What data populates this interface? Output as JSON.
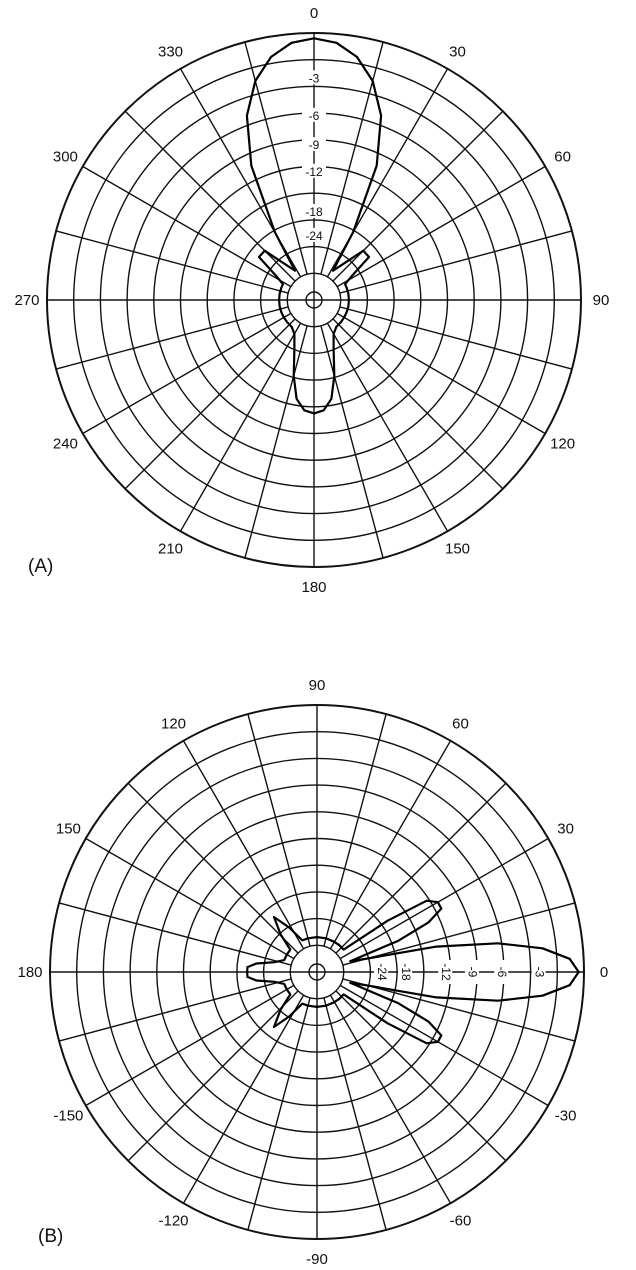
{
  "chart_data": [
    {
      "type": "polar",
      "panel_label": "(A)",
      "angle_labels": [
        "0",
        "30",
        "60",
        "90",
        "120",
        "150",
        "180",
        "210",
        "240",
        "270",
        "300",
        "330"
      ],
      "angle_values_deg": [
        0,
        30,
        60,
        90,
        120,
        150,
        180,
        210,
        240,
        270,
        300,
        330
      ],
      "radial_labels": [
        "-3",
        "-6",
        "-9",
        "-12",
        "-18",
        "-24"
      ],
      "radial_values_db": [
        -3,
        -6,
        -9,
        -12,
        -18,
        -24
      ],
      "radial_range_db": [
        -30,
        0
      ],
      "grid": true,
      "series": [
        {
          "points": [
            [
              0,
              0
            ],
            [
              5,
              -0.4
            ],
            [
              10,
              -1.7
            ],
            [
              15,
              -4
            ],
            [
              20,
              -7.5
            ],
            [
              25,
              -13
            ],
            [
              30,
              -21
            ],
            [
              33,
              -26
            ],
            [
              38,
              -25
            ],
            [
              45,
              -22
            ],
            [
              52,
              -22
            ],
            [
              58,
              -25
            ],
            [
              63,
              -26
            ],
            [
              70,
              -26
            ],
            [
              80,
              -26
            ],
            [
              90,
              -26
            ],
            [
              100,
              -26
            ],
            [
              110,
              -26
            ],
            [
              120,
              -26
            ],
            [
              130,
              -26
            ],
            [
              140,
              -26
            ],
            [
              150,
              -25.5
            ],
            [
              158,
              -24
            ],
            [
              165,
              -21
            ],
            [
              170,
              -18.5
            ],
            [
              175,
              -17.3
            ],
            [
              180,
              -17
            ],
            [
              185,
              -17.3
            ],
            [
              190,
              -18.5
            ],
            [
              195,
              -21
            ],
            [
              202,
              -24
            ],
            [
              210,
              -25.5
            ],
            [
              220,
              -26
            ],
            [
              230,
              -26
            ],
            [
              240,
              -26
            ],
            [
              250,
              -26
            ],
            [
              260,
              -26
            ],
            [
              270,
              -26
            ],
            [
              280,
              -26
            ],
            [
              290,
              -26
            ],
            [
              297,
              -26
            ],
            [
              302,
              -25
            ],
            [
              308,
              -22
            ],
            [
              315,
              -22
            ],
            [
              322,
              -25
            ],
            [
              327,
              -26
            ],
            [
              330,
              -21
            ],
            [
              335,
              -13
            ],
            [
              340,
              -7.5
            ],
            [
              345,
              -4
            ],
            [
              350,
              -1.7
            ],
            [
              355,
              -0.4
            ],
            [
              360,
              0
            ]
          ]
        }
      ]
    },
    {
      "type": "polar",
      "panel_label": "(B)",
      "angle_labels": [
        "0",
        "30",
        "60",
        "90",
        "120",
        "150",
        "180",
        "-150",
        "-120",
        "-90",
        "-60",
        "-30"
      ],
      "angle_values_deg": [
        0,
        30,
        60,
        90,
        120,
        150,
        180,
        -150,
        -120,
        -90,
        -60,
        -30
      ],
      "radial_labels": [
        "-3",
        "-6",
        "-9",
        "-12",
        "-18",
        "-24"
      ],
      "radial_values_db": [
        -3,
        -6,
        -9,
        -12,
        -18,
        -24
      ],
      "radial_range_db": [
        -30,
        0
      ],
      "grid": true,
      "series": [
        {
          "points": [
            [
              0,
              0
            ],
            [
              3,
              -1
            ],
            [
              6,
              -4
            ],
            [
              9,
              -9
            ],
            [
              12,
              -16
            ],
            [
              15,
              -24
            ],
            [
              18,
              -26
            ],
            [
              21,
              -20
            ],
            [
              24,
              -16
            ],
            [
              27,
              -14
            ],
            [
              30,
              -14
            ],
            [
              33,
              -15
            ],
            [
              36,
              -20
            ],
            [
              40,
              -26
            ],
            [
              50,
              -26
            ],
            [
              60,
              -26
            ],
            [
              75,
              -26
            ],
            [
              90,
              -26
            ],
            [
              105,
              -26
            ],
            [
              115,
              -26
            ],
            [
              122,
              -24
            ],
            [
              128,
              -22
            ],
            [
              134,
              -24
            ],
            [
              140,
              -26
            ],
            [
              150,
              -26
            ],
            [
              160,
              -26
            ],
            [
              167,
              -25
            ],
            [
              172,
              -23
            ],
            [
              176,
              -22
            ],
            [
              180,
              -22
            ],
            [
              184,
              -22
            ],
            [
              188,
              -23
            ],
            [
              193,
              -25
            ],
            [
              200,
              -26
            ],
            [
              210,
              -26
            ],
            [
              220,
              -26
            ],
            [
              226,
              -24
            ],
            [
              232,
              -22
            ],
            [
              238,
              -24
            ],
            [
              245,
              -26
            ],
            [
              255,
              -26
            ],
            [
              270,
              -26
            ],
            [
              285,
              -26
            ],
            [
              300,
              -26
            ],
            [
              310,
              -26
            ],
            [
              320,
              -26
            ],
            [
              324,
              -20
            ],
            [
              327,
              -15
            ],
            [
              330,
              -14
            ],
            [
              333,
              -14
            ],
            [
              336,
              -16
            ],
            [
              339,
              -20
            ],
            [
              342,
              -26
            ],
            [
              345,
              -24
            ],
            [
              348,
              -16
            ],
            [
              351,
              -9
            ],
            [
              354,
              -4
            ],
            [
              357,
              -1
            ],
            [
              360,
              0
            ]
          ]
        }
      ]
    }
  ]
}
